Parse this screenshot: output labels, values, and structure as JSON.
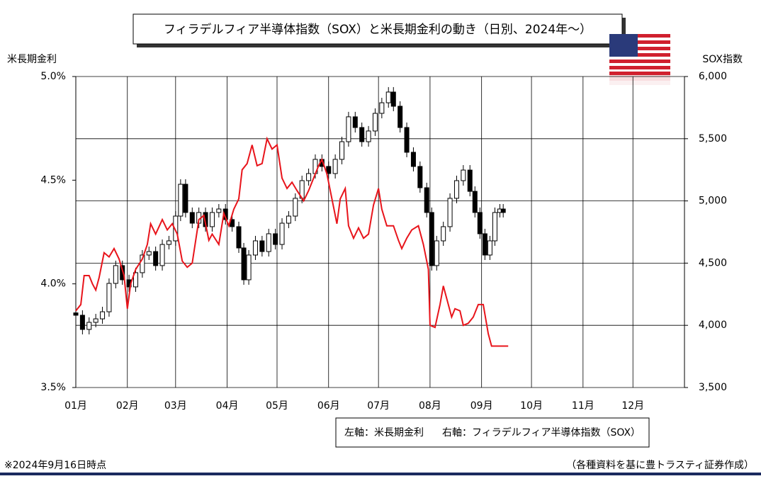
{
  "chart_data": {
    "type": "candlestick_line",
    "title": "フィラデルフィア半導体指数（SOX）と米長期金利の動き（日別、2024年～）",
    "y_label": "米長期金利",
    "y2_label": "SOX指数",
    "note": "※2024年9月16日時点",
    "source": "（各種資料を基に豊トラスティ証券作成）",
    "xlim": [
      0,
      366
    ],
    "xticks": [
      {
        "value": 0,
        "label": "01月"
      },
      {
        "value": 31,
        "label": "02月"
      },
      {
        "value": 60,
        "label": "03月"
      },
      {
        "value": 91,
        "label": "04月"
      },
      {
        "value": 121,
        "label": "05月"
      },
      {
        "value": 152,
        "label": "06月"
      },
      {
        "value": 182,
        "label": "07月"
      },
      {
        "value": 213,
        "label": "08月"
      },
      {
        "value": 244,
        "label": "09月"
      },
      {
        "value": 274,
        "label": "10月"
      },
      {
        "value": 305,
        "label": "11月"
      },
      {
        "value": 335,
        "label": "12月"
      }
    ],
    "ylim": [
      3.5,
      5.0
    ],
    "yticks": [
      {
        "value": 3.5,
        "label": "3.5%"
      },
      {
        "value": 4.0,
        "label": "4.0%"
      },
      {
        "value": 4.5,
        "label": "4.5%"
      },
      {
        "value": 5.0,
        "label": "5.0%"
      }
    ],
    "y2lim": [
      3500,
      6000
    ],
    "y2ticks": [
      {
        "value": 3500,
        "label": "3,500"
      },
      {
        "value": 4000,
        "label": "4,000"
      },
      {
        "value": 4500,
        "label": "4,500"
      },
      {
        "value": 5000,
        "label": "5,000"
      },
      {
        "value": 5500,
        "label": "5,500"
      },
      {
        "value": 6000,
        "label": "6,000"
      }
    ],
    "grid": true,
    "series": [
      {
        "name": "右軸：フィラデルフィア半導体指数（SOX）",
        "axis": "y2",
        "kind": "candlestick",
        "color": "#000000",
        "x": [
          0,
          4,
          8,
          12,
          16,
          20,
          24,
          28,
          32,
          36,
          40,
          44,
          48,
          52,
          56,
          60,
          63,
          66,
          70,
          74,
          78,
          82,
          86,
          90,
          94,
          98,
          101,
          104,
          108,
          112,
          116,
          120,
          124,
          128,
          132,
          136,
          140,
          144,
          148,
          152,
          156,
          160,
          164,
          168,
          172,
          176,
          180,
          184,
          188,
          191,
          195,
          199,
          203,
          207,
          211,
          214,
          217,
          221,
          225,
          229,
          233,
          237,
          240,
          243,
          246,
          249,
          252,
          255,
          257
        ],
        "open": [
          4100,
          4081,
          3967,
          4024,
          4052,
          4109,
          4337,
          4480,
          4366,
          4309,
          4423,
          4565,
          4593,
          4480,
          4650,
          4679,
          4878,
          5134,
          4907,
          4821,
          4907,
          4793,
          4907,
          4935,
          4850,
          4793,
          4622,
          4366,
          4565,
          4679,
          4593,
          4736,
          4650,
          4821,
          4878,
          5021,
          5163,
          5220,
          5334,
          5277,
          5220,
          5334,
          5476,
          5676,
          5590,
          5476,
          5562,
          5704,
          5789,
          5875,
          5761,
          5590,
          5391,
          5277,
          5106,
          4907,
          4480,
          4679,
          4793,
          5021,
          5163,
          5248,
          5077,
          4907,
          4736,
          4565,
          4679,
          4907,
          4935
        ],
        "high": [
          4140,
          4121,
          4064,
          4092,
          4149,
          4377,
          4520,
          4520,
          4406,
          4463,
          4605,
          4633,
          4633,
          4690,
          4719,
          4918,
          5174,
          5174,
          4947,
          4947,
          4947,
          4947,
          4975,
          4975,
          4890,
          4833,
          4662,
          4605,
          4719,
          4719,
          4776,
          4776,
          4861,
          4918,
          5061,
          5203,
          5260,
          5374,
          5374,
          5317,
          5374,
          5516,
          5716,
          5716,
          5630,
          5602,
          5744,
          5829,
          5915,
          5915,
          5801,
          5630,
          5431,
          5317,
          5146,
          4947,
          4719,
          4833,
          5061,
          5203,
          5288,
          5288,
          5117,
          4947,
          4776,
          4719,
          4947,
          4975,
          4975
        ],
        "low": [
          4041,
          3927,
          3927,
          3984,
          4012,
          4069,
          4297,
          4326,
          4269,
          4269,
          4383,
          4525,
          4440,
          4440,
          4610,
          4639,
          4838,
          4867,
          4781,
          4781,
          4753,
          4753,
          4867,
          4810,
          4753,
          4582,
          4326,
          4326,
          4525,
          4553,
          4553,
          4610,
          4610,
          4781,
          4838,
          4981,
          5123,
          5180,
          5237,
          5180,
          5180,
          5294,
          5436,
          5550,
          5436,
          5436,
          5522,
          5664,
          5749,
          5721,
          5550,
          5351,
          5237,
          5066,
          4867,
          4440,
          4440,
          4639,
          4753,
          4981,
          5123,
          5037,
          4867,
          4696,
          4525,
          4525,
          4639,
          4867,
          4867
        ],
        "close": [
          4081,
          3967,
          4024,
          4052,
          4109,
          4337,
          4480,
          4366,
          4309,
          4423,
          4565,
          4593,
          4480,
          4650,
          4679,
          4878,
          5134,
          4907,
          4821,
          4907,
          4793,
          4907,
          4935,
          4850,
          4793,
          4622,
          4366,
          4565,
          4679,
          4593,
          4736,
          4650,
          4821,
          4878,
          5021,
          5163,
          5220,
          5334,
          5277,
          5220,
          5334,
          5476,
          5676,
          5590,
          5476,
          5562,
          5704,
          5789,
          5875,
          5761,
          5590,
          5391,
          5277,
          5106,
          4907,
          4480,
          4679,
          4793,
          5021,
          5163,
          5248,
          5077,
          4907,
          4736,
          4565,
          4679,
          4907,
          4935,
          4907
        ]
      },
      {
        "name": "左軸：米長期金利",
        "axis": "y",
        "kind": "line",
        "color": "#e8141b",
        "x": [
          0,
          3,
          5,
          8,
          10,
          12,
          14,
          17,
          20,
          23,
          26,
          29,
          31,
          33,
          36,
          40,
          43,
          45,
          48,
          52,
          55,
          58,
          61,
          64,
          67,
          70,
          74,
          77,
          80,
          82,
          86,
          89,
          92,
          95,
          98,
          100,
          103,
          106,
          109,
          112,
          115,
          118,
          121,
          124,
          127,
          130,
          133,
          137,
          140,
          143,
          146,
          148,
          151,
          154,
          157,
          159,
          162,
          164,
          167,
          170,
          173,
          176,
          179,
          182,
          184,
          187,
          191,
          194,
          196,
          199,
          202,
          206,
          209,
          212,
          213,
          216,
          219,
          221,
          223,
          226,
          228,
          231,
          233,
          236,
          239,
          242,
          245,
          248,
          250,
          253,
          260
        ],
        "values": [
          3.87,
          3.9,
          4.04,
          4.04,
          4.0,
          3.97,
          4.03,
          4.15,
          4.13,
          4.17,
          4.12,
          4.04,
          3.88,
          4.0,
          4.07,
          4.12,
          4.19,
          4.29,
          4.24,
          4.31,
          4.26,
          4.29,
          4.24,
          4.11,
          4.08,
          4.1,
          4.31,
          4.33,
          4.21,
          4.24,
          4.19,
          4.34,
          4.28,
          4.36,
          4.41,
          4.55,
          4.58,
          4.67,
          4.57,
          4.58,
          4.7,
          4.65,
          4.67,
          4.51,
          4.46,
          4.49,
          4.45,
          4.4,
          4.45,
          4.51,
          4.57,
          4.6,
          4.53,
          4.41,
          4.29,
          4.41,
          4.46,
          4.28,
          4.22,
          4.27,
          4.22,
          4.24,
          4.38,
          4.46,
          4.36,
          4.28,
          4.28,
          4.21,
          4.17,
          4.22,
          4.26,
          4.28,
          4.19,
          4.07,
          3.8,
          3.79,
          3.9,
          3.99,
          3.93,
          3.84,
          3.88,
          3.87,
          3.8,
          3.81,
          3.84,
          3.9,
          3.9,
          3.76,
          3.7,
          3.7,
          3.7
        ]
      }
    ]
  }
}
